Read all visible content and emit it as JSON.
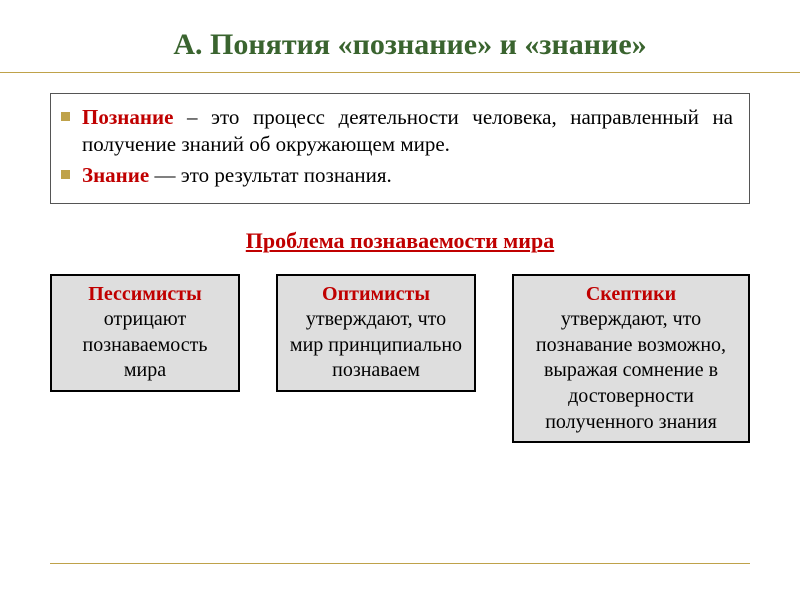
{
  "colors": {
    "title": "#3a642f",
    "accent_red": "#c00000",
    "rule": "#bfa24a",
    "bullet": "#bfa24a",
    "box_border": "#555555",
    "card_bg": "#dedede",
    "card_border": "#000000",
    "text": "#000000"
  },
  "title": "А. Понятия «познание» и «знание»",
  "definitions": [
    {
      "term": "Познание",
      "rest": " – это процесс деятельности человека, направленный на получение знаний об окружающем мире."
    },
    {
      "term": "Знание",
      "rest": " — это результат познания."
    }
  ],
  "subheader": "Проблема познаваемости мира ",
  "cards": [
    {
      "title": "Пессимисты",
      "body": "отрицают познаваемость мира"
    },
    {
      "title": "Оптимисты",
      "body": "утверждают, что мир принципиально познаваем"
    },
    {
      "title": "Скептики",
      "body": "утверждают, что познавание возможно, выражая сомнение в достоверности полученного знания"
    }
  ]
}
